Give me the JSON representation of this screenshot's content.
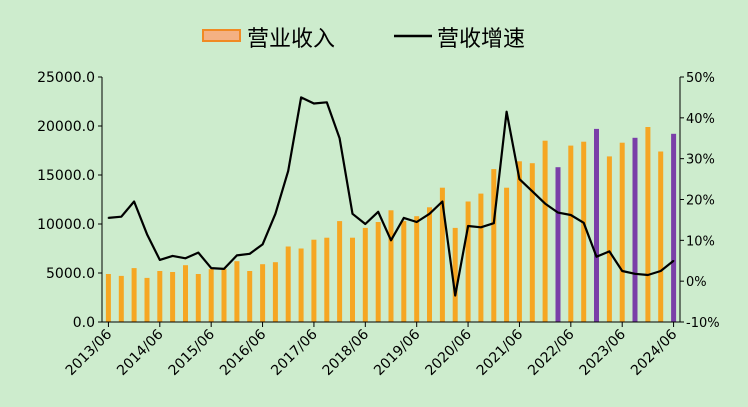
{
  "chart_data": {
    "type": "bar+line",
    "legend": {
      "placement": "top-center",
      "bar_label": "营业收入",
      "line_label": "营收增速"
    },
    "colors": {
      "background": "#cdeccd",
      "bar": "#f5a623",
      "bar_highlight": "#7a3fa8",
      "line": "#000000",
      "legend_bar_fill": "#f4b183",
      "legend_bar_stroke": "#f08a24"
    },
    "x_tick_labels": [
      "2013/06",
      "2014/06",
      "2015/06",
      "2016/06",
      "2017/06",
      "2018/06",
      "2019/06",
      "2020/06",
      "2021/06",
      "2022/06",
      "2023/06",
      "2024/06"
    ],
    "y_left": {
      "min": 0,
      "max": 25000,
      "ticks": [
        "0.0",
        "5000.0",
        "10000.0",
        "15000.0",
        "20000.0",
        "25000.0"
      ]
    },
    "y_right": {
      "min": -10,
      "max": 50,
      "ticks": [
        "-10%",
        "0%",
        "10%",
        "20%",
        "30%",
        "40%",
        "50%"
      ]
    },
    "grid": false,
    "series": [
      {
        "name": "营业收入",
        "axis": "left",
        "values": [
          4900,
          4700,
          5500,
          4500,
          5200,
          5100,
          5800,
          4900,
          5400,
          5400,
          6200,
          5200,
          5900,
          6100,
          7700,
          7500,
          8400,
          8600,
          10300,
          8600,
          9600,
          10200,
          11400,
          10300,
          10800,
          11700,
          13700,
          9600,
          12300,
          13100,
          15600,
          13700,
          16400,
          16200,
          18500,
          15800,
          18000,
          18400,
          19700,
          16900,
          18300,
          18800,
          19900,
          17400,
          19200
        ],
        "highlight_indices": [
          35,
          38,
          41,
          44
        ]
      },
      {
        "name": "营收增速",
        "axis": "right",
        "values": [
          15.5,
          15.8,
          19.5,
          11.5,
          5.2,
          6.2,
          5.6,
          7.0,
          3.2,
          3.0,
          6.3,
          6.7,
          9.0,
          16.5,
          27.0,
          45.0,
          43.5,
          43.8,
          35.0,
          16.5,
          14.0,
          17.0,
          10.0,
          15.5,
          14.5,
          16.5,
          19.5,
          -3.5,
          13.5,
          13.2,
          14.2,
          41.5,
          25.0,
          22.0,
          19.0,
          16.8,
          16.2,
          14.3,
          6.0,
          7.3,
          2.5,
          1.8,
          1.5,
          2.5,
          5.0
        ]
      }
    ]
  }
}
